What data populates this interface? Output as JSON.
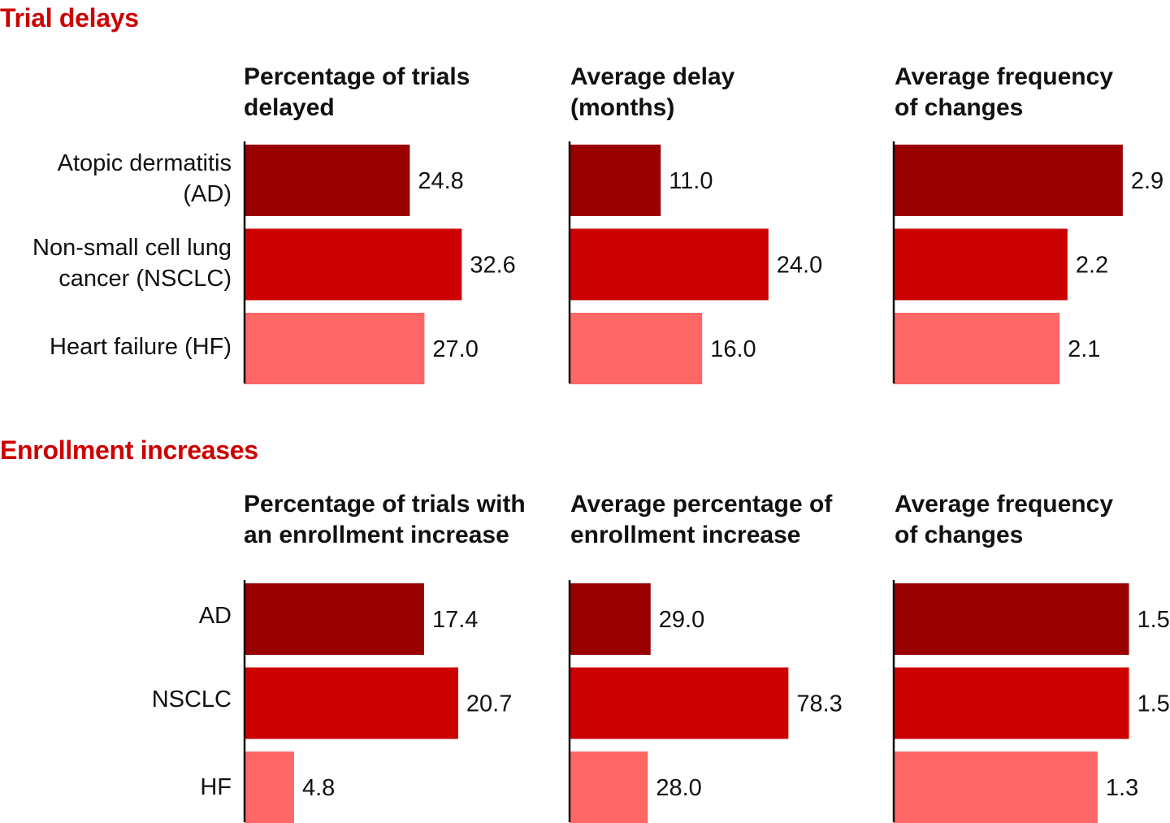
{
  "sections": [
    {
      "title": "Trial delays",
      "categories": [
        "Atopic dermatitis\n(AD)",
        "Non-small cell lung\ncancer (NSCLC)",
        "Heart failure (HF)"
      ],
      "panels": [
        {
          "title": "Percentage of trials\ndelayed",
          "values": [
            24.8,
            32.6,
            27.0
          ],
          "labels": [
            "24.8",
            "32.6",
            "27.0"
          ]
        },
        {
          "title": "Average delay\n(months)",
          "values": [
            11.0,
            24.0,
            16.0
          ],
          "labels": [
            "11.0",
            "24.0",
            "16.0"
          ]
        },
        {
          "title": "Average frequency\nof changes",
          "values": [
            2.9,
            2.2,
            2.1
          ],
          "labels": [
            "2.9",
            "2.2",
            "2.1"
          ]
        }
      ]
    },
    {
      "title": "Enrollment increases",
      "categories": [
        "AD",
        "NSCLC",
        "HF"
      ],
      "panels": [
        {
          "title": "Percentage of trials with\nan enrollment increase",
          "values": [
            17.4,
            20.7,
            4.8
          ],
          "labels": [
            "17.4",
            "20.7",
            "4.8"
          ]
        },
        {
          "title": "Average percentage of\nenrollment increase",
          "values": [
            29.0,
            78.3,
            28.0
          ],
          "labels": [
            "29.0",
            "78.3",
            "28.0"
          ]
        },
        {
          "title": "Average frequency\nof changes",
          "values": [
            1.5,
            1.5,
            1.3
          ],
          "labels": [
            "1.5",
            "1.5",
            "1.3"
          ]
        }
      ]
    }
  ],
  "colors": [
    "#990000",
    "#cc0000",
    "#ff6666"
  ],
  "chart_data": [
    {
      "type": "bar",
      "title": "Percentage of trials delayed",
      "categories": [
        "AD",
        "NSCLC",
        "HF"
      ],
      "values": [
        24.8,
        32.6,
        27.0
      ]
    },
    {
      "type": "bar",
      "title": "Average delay (months)",
      "categories": [
        "AD",
        "NSCLC",
        "HF"
      ],
      "values": [
        11.0,
        24.0,
        16.0
      ]
    },
    {
      "type": "bar",
      "title": "Average frequency of changes",
      "categories": [
        "AD",
        "NSCLC",
        "HF"
      ],
      "values": [
        2.9,
        2.2,
        2.1
      ]
    },
    {
      "type": "bar",
      "title": "Percentage of trials with an enrollment increase",
      "categories": [
        "AD",
        "NSCLC",
        "HF"
      ],
      "values": [
        17.4,
        20.7,
        4.8
      ]
    },
    {
      "type": "bar",
      "title": "Average percentage of enrollment increase",
      "categories": [
        "AD",
        "NSCLC",
        "HF"
      ],
      "values": [
        29.0,
        78.3,
        28.0
      ]
    },
    {
      "type": "bar",
      "title": "Average frequency of changes",
      "categories": [
        "AD",
        "NSCLC",
        "HF"
      ],
      "values": [
        1.5,
        1.5,
        1.3
      ]
    }
  ]
}
